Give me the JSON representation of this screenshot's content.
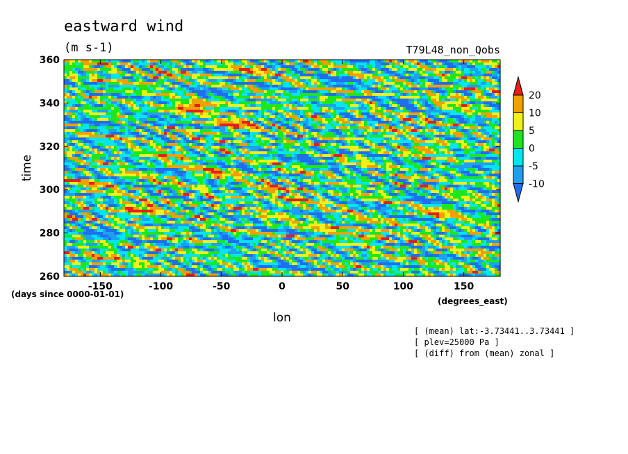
{
  "chart_data": {
    "type": "heatmap",
    "title": "eastward wind",
    "units": "(m s-1)",
    "run_label": "T79L48_non_Qobs",
    "xlabel": "lon",
    "x_units": "(degrees_east)",
    "ylabel": "time",
    "y_units": "(days since 0000-01-01)",
    "xlim": [
      -180,
      180
    ],
    "ylim": [
      260,
      360
    ],
    "x_ticks": [
      -150,
      -100,
      -50,
      0,
      50,
      100,
      150
    ],
    "y_ticks": [
      260,
      280,
      300,
      320,
      340,
      360
    ],
    "x_tick_labels": [
      "-150",
      "-100",
      "-50",
      "0",
      "50",
      "100",
      "150"
    ],
    "y_tick_labels": [
      "260",
      "280",
      "300",
      "320",
      "340",
      "360"
    ],
    "colorbar": {
      "levels": [
        -10,
        -5,
        0,
        5,
        10,
        20
      ],
      "labels": [
        "-10",
        "-5",
        "0",
        "5",
        "10",
        "20"
      ],
      "colors": [
        "#1e6ef0",
        "#1ea0f0",
        "#00e6f0",
        "#1ee61e",
        "#f0f01e",
        "#f0a000",
        "#e61e1e"
      ]
    },
    "notes": [
      "[ (mean) lat:-3.73441..3.73441 ]",
      "[ plev=25000 Pa ]",
      "[ (diff) from (mean) zonal ]"
    ],
    "anomaly_features": [
      {
        "lon": -72,
        "time": 338,
        "value": 22
      },
      {
        "lon": -38,
        "time": 330,
        "value": 21
      },
      {
        "lon": -118,
        "time": 291,
        "value": 21
      },
      {
        "lon": 100,
        "time": 328,
        "value": 12
      },
      {
        "lon": 120,
        "time": 319,
        "value": 12
      },
      {
        "lon": -100,
        "time": 352,
        "value": 11
      },
      {
        "lon": -30,
        "time": 355,
        "value": 11
      },
      {
        "lon": 10,
        "time": 295,
        "value": 11
      },
      {
        "lon": -150,
        "time": 268,
        "value": 10
      },
      {
        "lon": -5,
        "time": 300,
        "value": 11
      },
      {
        "lon": 75,
        "time": 279,
        "value": 11
      },
      {
        "lon": 50,
        "time": 283,
        "value": 10
      },
      {
        "lon": 130,
        "time": 290,
        "value": 10
      },
      {
        "lon": -60,
        "time": 307,
        "value": 10
      },
      {
        "lon": 150,
        "time": 342,
        "value": 10
      },
      {
        "lon": -150,
        "time": 358,
        "value": 10
      },
      {
        "lon": -90,
        "time": 316,
        "value": 9
      },
      {
        "lon": -150,
        "time": 303,
        "value": 9
      },
      {
        "lon": -110,
        "time": 331,
        "value": -12
      },
      {
        "lon": 120,
        "time": 295,
        "value": -12
      },
      {
        "lon": 50,
        "time": 350,
        "value": -11
      },
      {
        "lon": -150,
        "time": 280,
        "value": -11
      },
      {
        "lon": 20,
        "time": 315,
        "value": -11
      },
      {
        "lon": -40,
        "time": 275,
        "value": -10
      },
      {
        "lon": 160,
        "time": 310,
        "value": -10
      },
      {
        "lon": 10,
        "time": 265,
        "value": -10
      },
      {
        "lon": -160,
        "time": 330,
        "value": -10
      },
      {
        "lon": 100,
        "time": 340,
        "value": -10
      },
      {
        "lon": -60,
        "time": 345,
        "value": -9
      }
    ]
  }
}
